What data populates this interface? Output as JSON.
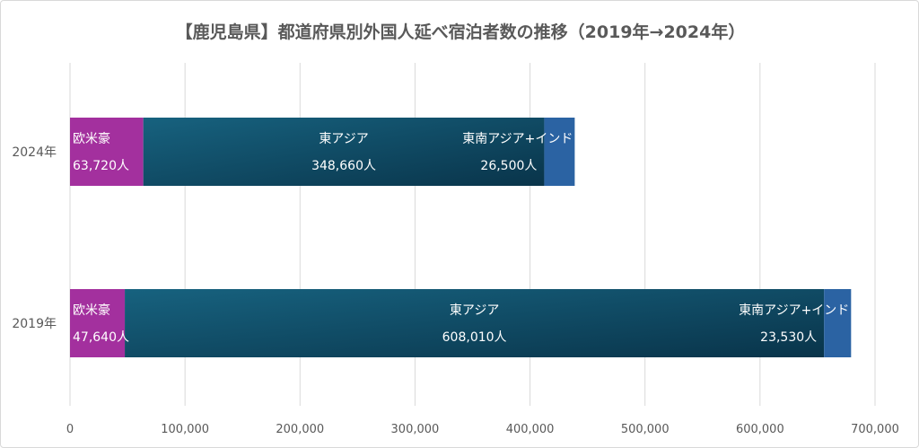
{
  "chart_data": {
    "type": "bar",
    "orientation": "horizontal",
    "stacked": true,
    "title": "【鹿児島県】都道府県別外国人延べ宿泊者数の推移（2019年→2024年）",
    "categories": [
      "2024年",
      "2019年"
    ],
    "series": [
      {
        "name": "欧米豪",
        "values": [
          63720,
          47640
        ],
        "labels": [
          "63,720人",
          "47,640人"
        ],
        "color": "#a3309e"
      },
      {
        "name": "東アジア",
        "values": [
          348660,
          608010
        ],
        "labels": [
          "348,660人",
          "608,010人"
        ],
        "color": "#0d4f6e"
      },
      {
        "name": "東南アジア+インド",
        "values": [
          26500,
          23530
        ],
        "labels": [
          "26,500人",
          "23,530人"
        ],
        "color": "#2b63a3"
      }
    ],
    "xlim": [
      0,
      700000
    ],
    "xticks": [
      0,
      100000,
      200000,
      300000,
      400000,
      500000,
      600000,
      700000
    ],
    "xtick_labels": [
      "0",
      "100,000",
      "200,000",
      "300,000",
      "400,000",
      "500,000",
      "600,000",
      "700,000"
    ],
    "grid": true,
    "legend": "none"
  }
}
